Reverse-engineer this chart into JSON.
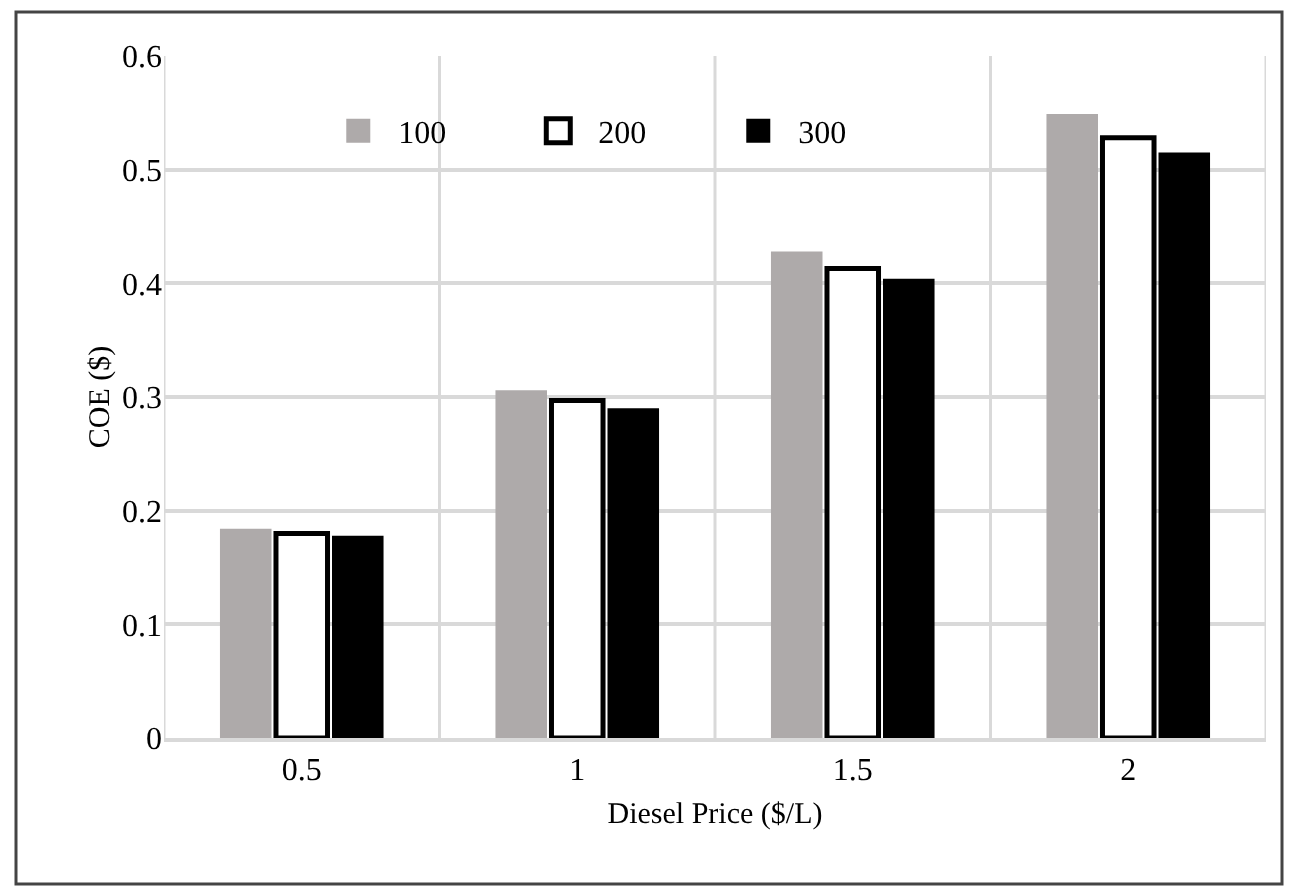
{
  "chart_data": {
    "type": "bar",
    "xlabel": "Diesel Price ($/L)",
    "ylabel": "COE ($)",
    "categories": [
      "0.5",
      "1",
      "1.5",
      "2"
    ],
    "series": [
      {
        "name": "100",
        "color": "#aeaaaa",
        "values": [
          0.184,
          0.306,
          0.428,
          0.549
        ]
      },
      {
        "name": "200",
        "color": "#ffffff",
        "values": [
          0.18,
          0.297,
          0.413,
          0.528
        ]
      },
      {
        "name": "300",
        "color": "#000000",
        "values": [
          0.178,
          0.29,
          0.404,
          0.515
        ]
      }
    ],
    "ylim": [
      0,
      0.6
    ],
    "yticks": [
      {
        "value": 0,
        "label": "0"
      },
      0.1,
      0.2,
      0.3,
      0.4,
      0.5,
      0.6
    ],
    "grid": true,
    "legend": "top"
  }
}
